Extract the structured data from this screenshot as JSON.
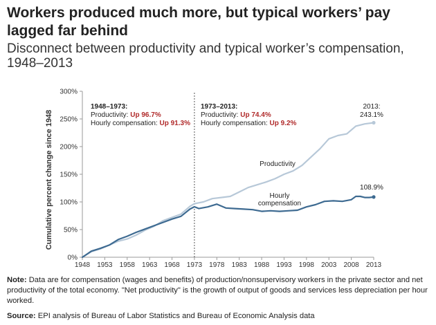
{
  "header": {
    "title_line1": "Workers produced much more, but typical workers’ pay",
    "title_line2": "lagged far behind",
    "subtitle_line1": "Disconnect between productivity and typical worker’s compensation,",
    "subtitle_line2": "1948–2013"
  },
  "footer": {
    "note_label": "Note:",
    "note_text": " Data are for compensation (wages and benefits) of production/nonsupervisory workers in the private sector and net productivity of the total economy. \"Net productivity\" is the growth of output of goods and services less depreciation per hour worked.",
    "source_label": "Source:",
    "source_text": " EPI analysis of Bureau of Labor Statistics and Bureau of Economic Analysis data"
  },
  "chart_data": {
    "type": "line",
    "title": "",
    "xlabel": "",
    "ylabel": "Cumulative percent change since 1948",
    "xlim": [
      1948,
      2013
    ],
    "ylim": [
      0,
      300
    ],
    "x_ticks": [
      1948,
      1953,
      1958,
      1963,
      1968,
      1973,
      1978,
      1983,
      1988,
      1993,
      1998,
      2003,
      2008,
      2013
    ],
    "x_tick_labels": [
      "1948",
      "1953",
      "1958",
      "1963",
      "1968",
      "1973",
      "1978",
      "1983",
      "1988",
      "1993",
      "1998",
      "2003",
      "2008",
      "2013"
    ],
    "y_ticks": [
      0,
      50,
      100,
      150,
      200,
      250,
      300
    ],
    "y_tick_labels": [
      "0%",
      "50%",
      "100%",
      "150%",
      "200%",
      "250%",
      "300%"
    ],
    "grid": false,
    "colors": {
      "productivity": "#b7c8d8",
      "compensation": "#3d6a91",
      "highlight": "#b02a2a",
      "axis": "#999999",
      "divider": "#555555"
    },
    "series": [
      {
        "name": "Productivity",
        "key": "productivity",
        "x": [
          1948,
          1950,
          1952,
          1954,
          1956,
          1958,
          1960,
          1962,
          1964,
          1966,
          1968,
          1970,
          1972,
          1973,
          1975,
          1977,
          1979,
          1981,
          1983,
          1985,
          1987,
          1989,
          1991,
          1993,
          1995,
          1997,
          1999,
          2001,
          2003,
          2005,
          2007,
          2009,
          2011,
          2013
        ],
        "values": [
          0,
          10,
          15,
          22,
          29,
          33,
          40,
          49,
          56,
          66,
          72,
          78,
          92,
          96.7,
          100,
          106,
          108,
          110,
          118,
          126,
          131,
          136,
          142,
          150,
          156,
          166,
          181,
          196,
          214,
          220,
          223,
          237,
          241,
          243.1
        ]
      },
      {
        "name": "Hourly compensation",
        "key": "compensation",
        "x": [
          1948,
          1950,
          1952,
          1954,
          1956,
          1958,
          1960,
          1962,
          1964,
          1966,
          1968,
          1970,
          1972,
          1973,
          1974,
          1976,
          1978,
          1980,
          1982,
          1984,
          1986,
          1988,
          1990,
          1992,
          1994,
          1996,
          1998,
          2000,
          2002,
          2004,
          2006,
          2008,
          2009,
          2010,
          2011,
          2012,
          2013
        ],
        "values": [
          0,
          11,
          16,
          22,
          32,
          38,
          45,
          51,
          57,
          63,
          69,
          74,
          87,
          91.3,
          88,
          91,
          96,
          89,
          88,
          87,
          86,
          83,
          84,
          83,
          84,
          85,
          91,
          95,
          101,
          102,
          101,
          104,
          110,
          110,
          108,
          108,
          108.9
        ]
      }
    ],
    "divider_year": 1973,
    "annotations": {
      "period1_title": "1948–1973:",
      "period1_prod_prefix": "Productivity: ",
      "period1_prod_value": "Up 96.7%",
      "period1_comp_prefix": "Hourly compensation: ",
      "period1_comp_value": "Up 91.3%",
      "period2_title": "1973–2013:",
      "period2_prod_prefix": "Productivity: ",
      "period2_prod_value": "Up 74.4%",
      "period2_comp_prefix": "Hourly compensation: ",
      "period2_comp_value": "Up 9.2%",
      "productivity_label": "Productivity",
      "compensation_label_line1": "Hourly",
      "compensation_label_line2": "compensation",
      "end_prod_line1": "2013:",
      "end_prod_line2": "243.1%",
      "end_comp": "108.9%"
    }
  }
}
